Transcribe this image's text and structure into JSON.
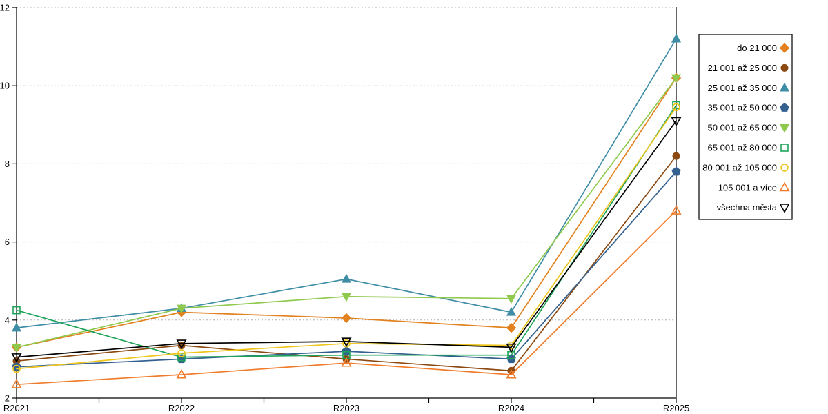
{
  "page": {
    "background": "#ffffff",
    "title": ""
  },
  "chart_data": {
    "type": "line",
    "categories": [
      "R2021",
      "R2022",
      "R2023",
      "R2024",
      "R2025"
    ],
    "xlabel": "",
    "ylabel": "",
    "ylim": [
      2,
      12
    ],
    "y_ticks": [
      2,
      4,
      6,
      8,
      10,
      12
    ],
    "grid": "horizontal-dashed-gray",
    "axis_color": "#000000",
    "gridline_color": "#b0b0b0",
    "legend_position": "right-outside-box",
    "legend_border_color": "#000000",
    "series": [
      {
        "name": "do 21 000",
        "marker": "diamond",
        "fill": "filled",
        "color": "#E2811E",
        "values": [
          3.3,
          4.2,
          4.05,
          3.8,
          10.2
        ]
      },
      {
        "name": "21 001 až 25 000",
        "marker": "circle",
        "fill": "filled",
        "color": "#8C4A12",
        "values": [
          2.95,
          3.35,
          3.0,
          2.7,
          8.2
        ]
      },
      {
        "name": "25 001 až 35 000",
        "marker": "triangle-up",
        "fill": "filled",
        "color": "#3E8DA5",
        "values": [
          3.8,
          4.3,
          5.05,
          4.2,
          11.2
        ]
      },
      {
        "name": "35 001 až 50 000",
        "marker": "pentagon",
        "fill": "filled",
        "color": "#33608F",
        "values": [
          2.8,
          3.0,
          3.2,
          3.0,
          7.8
        ]
      },
      {
        "name": "50 001 až 65 000",
        "marker": "triangle-down",
        "fill": "filled",
        "color": "#8FC94E",
        "values": [
          3.3,
          4.3,
          4.6,
          4.55,
          10.2
        ]
      },
      {
        "name": "65 001 až 80 000",
        "marker": "square",
        "fill": "open",
        "color": "#1EA45A",
        "values": [
          4.25,
          3.05,
          3.1,
          3.1,
          9.5
        ]
      },
      {
        "name": "80 001 až 105 000",
        "marker": "circle",
        "fill": "open",
        "color": "#EDC51B",
        "values": [
          2.75,
          3.15,
          3.4,
          3.35,
          9.45
        ]
      },
      {
        "name": "105 001 a více",
        "marker": "triangle-up",
        "fill": "open",
        "color": "#F07C2B",
        "values": [
          2.35,
          2.6,
          2.9,
          2.6,
          6.8
        ]
      },
      {
        "name": "všechna města",
        "marker": "triangle-down",
        "fill": "open",
        "color": "#000000",
        "values": [
          3.05,
          3.4,
          3.45,
          3.3,
          9.1
        ]
      }
    ]
  }
}
